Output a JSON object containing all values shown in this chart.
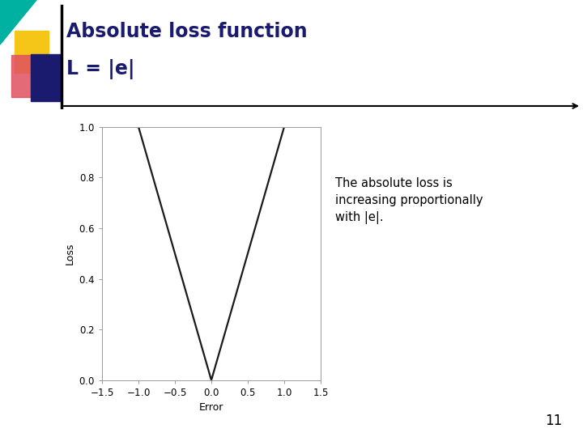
{
  "title_line1": "Absolute loss function",
  "title_line2": "L = |e|",
  "xlabel": "Error",
  "ylabel": "Loss",
  "xlim": [
    -1.5,
    1.5
  ],
  "ylim": [
    0.0,
    1.0
  ],
  "xticks": [
    -1.5,
    -1.0,
    -0.5,
    0.0,
    0.5,
    1.0,
    1.5
  ],
  "yticks": [
    0.0,
    0.2,
    0.4,
    0.6,
    0.8,
    1.0
  ],
  "line_color": "#1a1a1a",
  "line_width": 1.6,
  "title_color": "#1a1a6e",
  "annotation_text": "The absolute loss is\nincreasing proportionally\nwith |e|.",
  "background_color": "#ffffff",
  "plot_bg_color": "#ffffff",
  "page_number": "11",
  "decorative_yellow": "#f5c518",
  "decorative_blue": "#1a1a6e",
  "decorative_red": "#e05060",
  "decorative_teal": "#00b0a0"
}
